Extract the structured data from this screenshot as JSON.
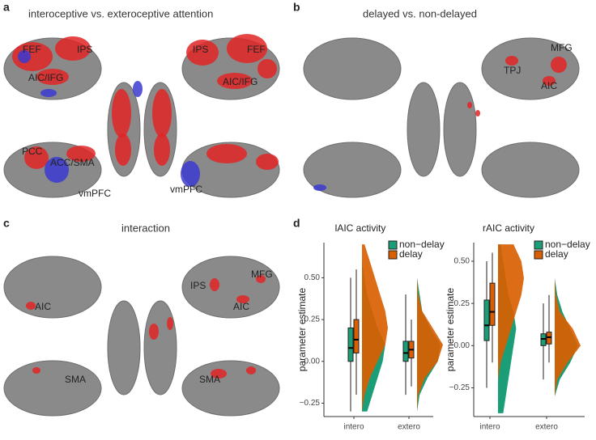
{
  "panels": [
    {
      "letter": "a",
      "title": "interoceptive vs. exteroceptive attention",
      "labels": [
        "FEF",
        "IPS",
        "AIC/IFG",
        "IPS",
        "FEF",
        "AIC/IFG",
        "PCC",
        "ACC/SMA",
        "vmPFC",
        "vmPFC"
      ]
    },
    {
      "letter": "b",
      "title": "delayed vs. non-delayed",
      "labels": [
        "MFG",
        "TPJ",
        "AIC"
      ]
    },
    {
      "letter": "c",
      "title": "interaction",
      "labels": [
        "AIC",
        "SMA",
        "IPS",
        "MFG",
        "AIC",
        "SMA"
      ]
    },
    {
      "letter": "d"
    }
  ],
  "chart_data": [
    {
      "type": "raincloud",
      "title": "lAIC activity",
      "ylabel": "parameter estimate",
      "categories": [
        "intero",
        "extero"
      ],
      "ylim": [
        -0.33,
        0.71
      ],
      "yticks": [
        {
          "value": -0.25,
          "label": "−0.25"
        },
        {
          "value": 0,
          "label": "0.00"
        },
        0.25,
        {
          "value": 0.5,
          "label": "0.50"
        }
      ],
      "density_y": [
        -0.3,
        -0.2,
        -0.1,
        0,
        0.1,
        0.2,
        0.3,
        0.4,
        0.5,
        0.6,
        0.7
      ],
      "series": [
        {
          "name": "non−delay",
          "color": "#1b9e77",
          "stats": [
            [
              -0.3,
              0.0,
              0.08,
              0.2,
              0.5
            ],
            [
              -0.2,
              0.0,
              0.05,
              0.12,
              0.4
            ]
          ],
          "density": [
            [
              0.2,
              0.4,
              0.6,
              0.8,
              0.9,
              0.6,
              0.4,
              0.2,
              0.1,
              0,
              0
            ],
            [
              0,
              0.1,
              0.4,
              0.8,
              0.9,
              0.5,
              0.2,
              0.1,
              0,
              0,
              0
            ]
          ]
        },
        {
          "name": "delay",
          "color": "#d95f02",
          "stats": [
            [
              -0.2,
              0.05,
              0.13,
              0.25,
              0.55
            ],
            [
              -0.15,
              0.02,
              0.07,
              0.12,
              0.25
            ]
          ],
          "density": [
            [
              0,
              0.1,
              0.3,
              0.6,
              0.9,
              1.0,
              0.9,
              0.7,
              0.5,
              0.3,
              0.1
            ],
            [
              0,
              0.05,
              0.3,
              0.8,
              1.0,
              0.6,
              0.2,
              0.05,
              0,
              0,
              0
            ]
          ]
        }
      ]
    },
    {
      "type": "raincloud",
      "title": "rAIC activity",
      "ylabel": "parameter estimate",
      "categories": [
        "intero",
        "extero"
      ],
      "ylim": [
        -0.42,
        0.61
      ],
      "yticks": [
        {
          "value": -0.25,
          "label": "−0.25"
        },
        {
          "value": 0,
          "label": "0.00"
        },
        0.25,
        {
          "value": 0.5,
          "label": "0.50"
        }
      ],
      "density_y": [
        -0.4,
        -0.3,
        -0.2,
        -0.1,
        0,
        0.1,
        0.2,
        0.3,
        0.4,
        0.5,
        0.6
      ],
      "series": [
        {
          "name": "non−delay",
          "color": "#1b9e77",
          "stats": [
            [
              -0.25,
              0.03,
              0.12,
              0.27,
              0.5
            ],
            [
              -0.2,
              0.0,
              0.04,
              0.07,
              0.25
            ]
          ],
          "density": [
            [
              0.2,
              0.3,
              0.4,
              0.5,
              0.6,
              0.7,
              0.6,
              0.4,
              0.3,
              0.2,
              0.1
            ],
            [
              0,
              0,
              0.2,
              0.6,
              0.9,
              0.6,
              0.3,
              0.1,
              0,
              0,
              0
            ]
          ]
        },
        {
          "name": "delay",
          "color": "#d95f02",
          "stats": [
            [
              -0.1,
              0.12,
              0.2,
              0.37,
              0.55
            ],
            [
              -0.1,
              0.01,
              0.05,
              0.08,
              0.3
            ]
          ],
          "density": [
            [
              0,
              0,
              0,
              0.1,
              0.3,
              0.5,
              0.7,
              0.9,
              1,
              0.9,
              0.6
            ],
            [
              0,
              0,
              0.1,
              0.5,
              1.0,
              0.7,
              0.2,
              0.05,
              0,
              0,
              0
            ]
          ]
        }
      ]
    }
  ]
}
